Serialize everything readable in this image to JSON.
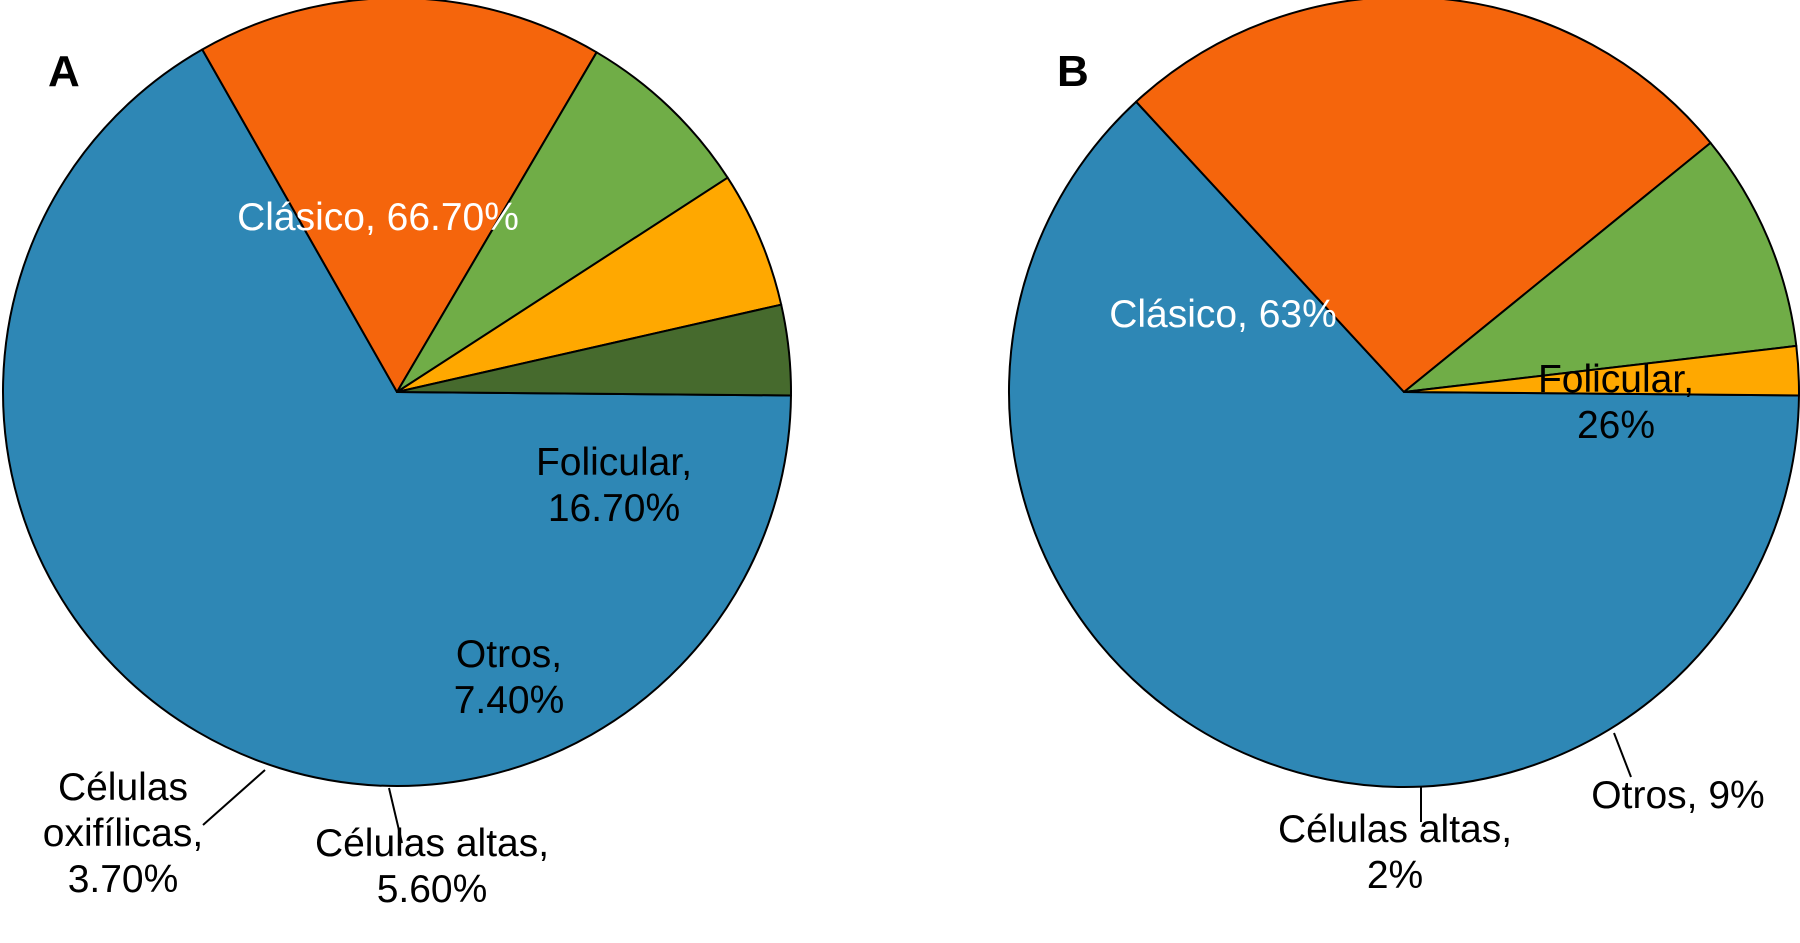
{
  "colors": {
    "blue": "#2E87B5",
    "orange": "#F5650C",
    "light_green": "#70AD47",
    "yellow": "#FFA800",
    "dark_green": "#466A2D",
    "edge": "#000000"
  },
  "chart_data": [
    {
      "type": "pie",
      "panel": "A",
      "slices": [
        {
          "label": "Clásico",
          "value": 66.7,
          "text_lines": [
            "Clásico, 66.70%"
          ],
          "color": "#2E87B5",
          "label_color": "#ffffff"
        },
        {
          "label": "Folicular",
          "value": 16.7,
          "text_lines": [
            "Folicular,",
            "16.70%"
          ],
          "color": "#F5650C",
          "label_color": "#000000"
        },
        {
          "label": "Otros",
          "value": 7.4,
          "text_lines": [
            "Otros,",
            "7.40%"
          ],
          "color": "#70AD47",
          "label_color": "#000000"
        },
        {
          "label": "Células altas",
          "value": 5.6,
          "text_lines": [
            "Células altas,",
            "5.60%"
          ],
          "color": "#FFA800",
          "label_color": "#000000"
        },
        {
          "label": "Células oxifílicas",
          "value": 3.7,
          "text_lines": [
            "Células",
            "oxifílicas,",
            "3.70%"
          ],
          "color": "#466A2D",
          "label_color": "#000000"
        }
      ]
    },
    {
      "type": "pie",
      "panel": "B",
      "slices": [
        {
          "label": "Clásico",
          "value": 63,
          "text_lines": [
            "Clásico, 63%"
          ],
          "color": "#2E87B5",
          "label_color": "#ffffff"
        },
        {
          "label": "Folicular",
          "value": 26,
          "text_lines": [
            "Folicular,",
            "26%"
          ],
          "color": "#F5650C",
          "label_color": "#000000"
        },
        {
          "label": "Otros",
          "value": 9,
          "text_lines": [
            "Otros, 9%"
          ],
          "color": "#70AD47",
          "label_color": "#000000"
        },
        {
          "label": "Células altas",
          "value": 2,
          "text_lines": [
            "Células altas,",
            "2%"
          ],
          "color": "#FFA800",
          "label_color": "#000000"
        }
      ]
    }
  ]
}
